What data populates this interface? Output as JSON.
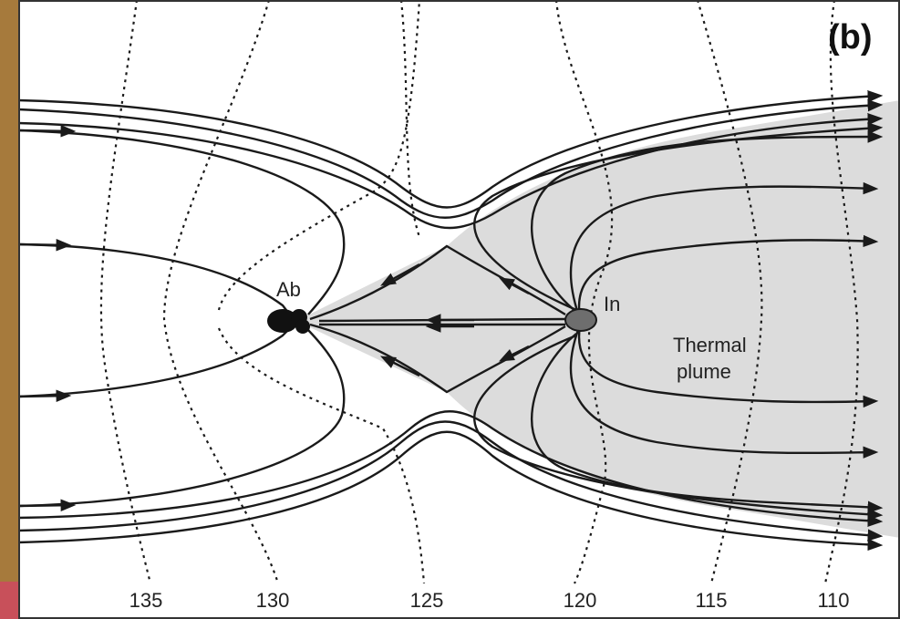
{
  "figure": {
    "panel_label": "(b)",
    "labels": {
      "abducting": "Ab",
      "injection": "In",
      "plume_line1": "Thermal",
      "plume_line2": "plume"
    },
    "contour_ticks": [
      "135",
      "130",
      "125",
      "120",
      "115",
      "110"
    ],
    "colors": {
      "plume_fill": "#dcdcdc",
      "stream_line": "#1a1a1a",
      "contour_line": "#1a1a1a",
      "injection_well": "#6e6e6e",
      "abstraction_well": "#111111",
      "frame_accent": "#a67a3c"
    }
  }
}
